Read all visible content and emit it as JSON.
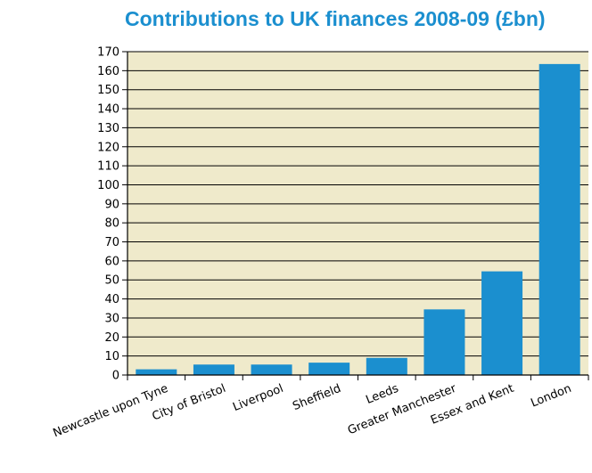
{
  "chart_data": {
    "type": "bar",
    "title": "Contributions to UK finances 2008-09 (£bn)",
    "xlabel": "",
    "ylabel": "",
    "categories": [
      "Newcastle upon Tyne",
      "City of Bristol",
      "Liverpool",
      "Sheffield",
      "Leeds",
      "Greater Manchester",
      "Essex and Kent",
      "London"
    ],
    "values": [
      3,
      5.5,
      5.5,
      6.5,
      9,
      34.5,
      54.5,
      163.5
    ],
    "ylim": [
      0,
      170
    ],
    "yticks": [
      "0",
      "10",
      "20",
      "30",
      "40",
      "50",
      "60",
      "70",
      "80",
      "90",
      "100",
      "110",
      "120",
      "130",
      "140",
      "150",
      "160",
      "170"
    ],
    "grid": true,
    "legend": "none",
    "colors": {
      "bar": "#1b8fcf",
      "plot_background": "#efeacb",
      "title": "#1b8fcf",
      "grid": "#000000"
    }
  }
}
